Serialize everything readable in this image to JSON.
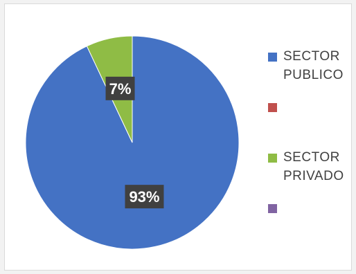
{
  "chart_data": {
    "type": "pie",
    "categories": [
      "SECTOR\nPUBLICO",
      "",
      "SECTOR\nPRIVADO",
      ""
    ],
    "values": [
      93,
      0,
      7,
      0
    ],
    "data_labels": [
      "93%",
      "",
      "7%",
      ""
    ],
    "colors": [
      "#4472c4",
      "#c0504d",
      "#8fbc45",
      "#8064a2"
    ],
    "legend_position": "right",
    "legend": [
      {
        "line1": "SECTOR",
        "line2": "PUBLICO",
        "color": "#4472c4"
      },
      {
        "line1": "",
        "line2": "",
        "color": "#c0504d"
      },
      {
        "line1": "SECTOR",
        "line2": "PRIVADO",
        "color": "#8fbc45"
      },
      {
        "line1": "",
        "line2": "",
        "color": "#8064a2"
      }
    ]
  }
}
